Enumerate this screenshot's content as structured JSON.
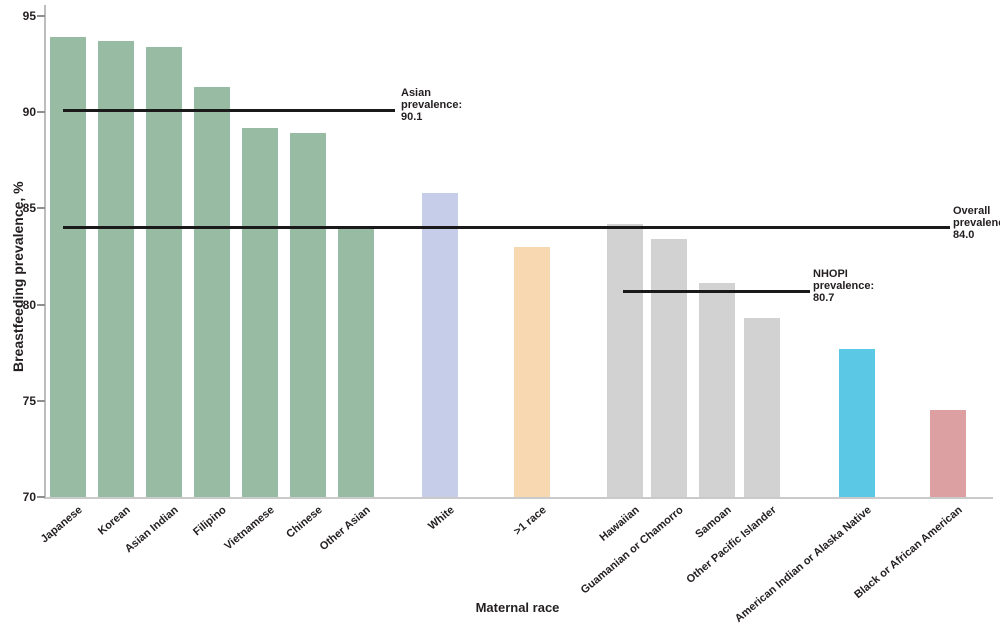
{
  "chart_data": {
    "type": "bar",
    "title": "",
    "xlabel": "Maternal race",
    "ylabel": "Breastfeeding prevalence, %",
    "ylim": [
      70,
      95
    ],
    "yticks": [
      70,
      75,
      80,
      85,
      90,
      95
    ],
    "grid": false,
    "legend": "none",
    "bars": [
      {
        "label": "Japanese",
        "value": 93.9,
        "color": "#97bca3"
      },
      {
        "label": "Korean",
        "value": 93.7,
        "color": "#97bca3"
      },
      {
        "label": "Asian Indian",
        "value": 93.4,
        "color": "#97bca3"
      },
      {
        "label": "Filipino",
        "value": 91.3,
        "color": "#97bca3"
      },
      {
        "label": "Vietnamese",
        "value": 89.2,
        "color": "#97bca3"
      },
      {
        "label": "Chinese",
        "value": 88.9,
        "color": "#97bca3"
      },
      {
        "label": "Other Asian",
        "value": 84.1,
        "color": "#97bca3"
      },
      {
        "label": "White",
        "value": 85.8,
        "color": "#c6cde8"
      },
      {
        "label": ">1 race",
        "value": 83.0,
        "color": "#f8d8b0"
      },
      {
        "label": "Hawaiian",
        "value": 84.2,
        "color": "#d2d2d3"
      },
      {
        "label": "Guamanian or Chamorro",
        "value": 83.4,
        "color": "#d2d2d3"
      },
      {
        "label": "Samoan",
        "value": 81.1,
        "color": "#d2d2d3"
      },
      {
        "label": "Other Pacific Islander",
        "value": 79.3,
        "color": "#d2d2d3"
      },
      {
        "label": "American Indian or Alaska Native",
        "value": 77.7,
        "color": "#5bc8e6"
      },
      {
        "label": "Black or African American",
        "value": 74.5,
        "color": "#dda0a2"
      }
    ],
    "reference_lines": [
      {
        "name": "Asian prevalence",
        "value": 90.1,
        "label_lines": [
          "Asian",
          "prevalence:",
          "90.1"
        ]
      },
      {
        "name": "Overall prevalence",
        "value": 84.0,
        "label_lines": [
          "Overall",
          "prevalence:",
          "84.0"
        ]
      },
      {
        "name": "NHOPI prevalence",
        "value": 80.7,
        "label_lines": [
          "NHOPI",
          "prevalence:",
          "80.7"
        ]
      }
    ],
    "colors": {
      "asian_bars": "#97bca3",
      "white_bar": "#c6cde8",
      "multirace_bar": "#f8d8b0",
      "nhopi_bars": "#d2d2d3",
      "aian_bar": "#5bc8e6",
      "black_bar": "#dda0a2",
      "reference_line": "#1a1a1a"
    }
  }
}
